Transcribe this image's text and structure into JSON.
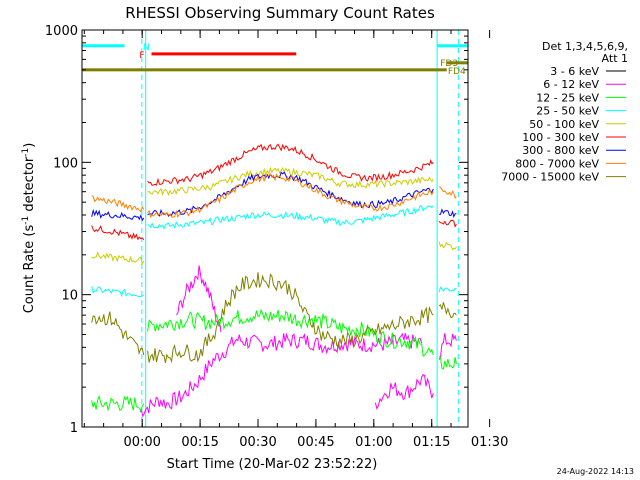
{
  "chart_data": {
    "type": "line",
    "title": "RHESSI Observing Summary Count Rates",
    "xlabel": "Start Time (20-Mar-02 23:52:22)",
    "ylabel_main": "Count Rate (s",
    "ylabel_sup": "-1",
    "ylabel_mid": " detector",
    "ylabel_sup2": "-1",
    "ylabel_end": ")",
    "y_scale": "log",
    "ylim": [
      1,
      1000
    ],
    "xlim_minutes": [
      -8,
      92
    ],
    "x_ticks": [
      {
        "minute": 7.6,
        "label": "00:00"
      },
      {
        "minute": 22.6,
        "label": "00:15"
      },
      {
        "minute": 37.6,
        "label": "00:30"
      },
      {
        "minute": 52.6,
        "label": "00:45"
      },
      {
        "minute": 67.6,
        "label": "01:00"
      },
      {
        "minute": 82.6,
        "label": "01:15"
      },
      {
        "minute": 97.6,
        "label": "01:30"
      }
    ],
    "y_ticks": [
      {
        "value": 1,
        "label": "1"
      },
      {
        "value": 10,
        "label": "10"
      },
      {
        "value": 100,
        "label": "100"
      },
      {
        "value": 1000,
        "label": "1000"
      }
    ],
    "legend_title": [
      "Det 1,3,4,5,6,9,",
      "Att 1"
    ],
    "legend_position": "right",
    "series": [
      {
        "name": "3 - 6 keV",
        "color": "#000000",
        "segments": []
      },
      {
        "name": "6 - 12 keV",
        "color": "#ff00ff",
        "segments": [
          [
            [
              7,
              1.3
            ],
            [
              12,
              1.6
            ],
            [
              14,
              1.5
            ],
            [
              18,
              1.7
            ],
            [
              22,
              2.2
            ],
            [
              26,
              3.2
            ],
            [
              30,
              4
            ],
            [
              32,
              4.6
            ],
            [
              35,
              4.4
            ],
            [
              40,
              4.2
            ],
            [
              45,
              4.5
            ],
            [
              50,
              4.5
            ],
            [
              55,
              4.1
            ],
            [
              60,
              4.3
            ],
            [
              65,
              4.2
            ],
            [
              70,
              4.2
            ],
            [
              75,
              4.5
            ],
            [
              80,
              4.3
            ]
          ],
          [
            [
              16.5,
              7
            ],
            [
              18,
              9
            ],
            [
              19.5,
              11
            ],
            [
              21,
              13
            ],
            [
              22,
              15
            ],
            [
              23,
              14
            ],
            [
              24,
              12
            ],
            [
              25,
              10
            ],
            [
              26,
              8
            ],
            [
              27,
              6.5
            ],
            [
              28,
              5.2
            ]
          ],
          [
            [
              68,
              1.5
            ],
            [
              72,
              2
            ],
            [
              76,
              1.8
            ],
            [
              80,
              2.3
            ],
            [
              83,
              1.8
            ]
          ],
          [
            [
              84.5,
              3.5
            ],
            [
              86,
              4.5
            ],
            [
              88,
              4.5
            ],
            [
              89,
              4.5
            ]
          ]
        ]
      },
      {
        "name": "12 - 25 keV",
        "color": "#00ff00",
        "segments": [
          [
            [
              -5.5,
              1.5
            ],
            [
              8,
              1.5
            ]
          ],
          [
            [
              9,
              5.5
            ],
            [
              11,
              6
            ],
            [
              13,
              6
            ],
            [
              16,
              6.2
            ],
            [
              20,
              6.5
            ],
            [
              24,
              6.2
            ],
            [
              28,
              6.3
            ],
            [
              32,
              6.7
            ],
            [
              36,
              7
            ],
            [
              40,
              6.8
            ],
            [
              44,
              7
            ],
            [
              48,
              6.5
            ],
            [
              52,
              6.5
            ],
            [
              56,
              6
            ],
            [
              60,
              5.5
            ],
            [
              64,
              5.5
            ],
            [
              68,
              5
            ],
            [
              72,
              4.5
            ],
            [
              76,
              4.5
            ],
            [
              80,
              4
            ],
            [
              83,
              3.5
            ]
          ],
          [
            [
              84.5,
              3
            ],
            [
              86,
              3
            ],
            [
              88,
              3
            ],
            [
              89,
              3
            ]
          ]
        ]
      },
      {
        "name": "25 - 50 keV",
        "color": "#00ffff",
        "segments": [
          [
            [
              -5.5,
              11
            ],
            [
              0,
              10.5
            ],
            [
              8,
              10
            ]
          ],
          [
            [
              9,
              34
            ],
            [
              14,
              33
            ],
            [
              18,
              34
            ],
            [
              24,
              35
            ],
            [
              28,
              37
            ],
            [
              32,
              38
            ],
            [
              36,
              40
            ],
            [
              40,
              40
            ],
            [
              44,
              40
            ],
            [
              48,
              39
            ],
            [
              52,
              38
            ],
            [
              56,
              36
            ],
            [
              60,
              35
            ],
            [
              64,
              36
            ],
            [
              68,
              38
            ],
            [
              72,
              40
            ],
            [
              76,
              42
            ],
            [
              80,
              45
            ],
            [
              83,
              47
            ]
          ],
          [
            [
              84.5,
              11
            ],
            [
              86,
              11
            ],
            [
              88,
              11
            ],
            [
              89,
              11
            ]
          ]
        ]
      },
      {
        "name": "50 - 100 keV",
        "color": "#cccc00",
        "segments": [
          [
            [
              -5.5,
              20
            ],
            [
              0,
              19
            ],
            [
              8,
              18
            ]
          ],
          [
            [
              9,
              60
            ],
            [
              14,
              60
            ],
            [
              20,
              62
            ],
            [
              26,
              66
            ],
            [
              30,
              73
            ],
            [
              34,
              80
            ],
            [
              38,
              84
            ],
            [
              42,
              86
            ],
            [
              46,
              85
            ],
            [
              50,
              82
            ],
            [
              54,
              78
            ],
            [
              58,
              70
            ],
            [
              62,
              68
            ],
            [
              66,
              68
            ],
            [
              70,
              69
            ],
            [
              74,
              70
            ],
            [
              78,
              72
            ],
            [
              82,
              74
            ],
            [
              83,
              75
            ]
          ],
          [
            [
              84.5,
              24
            ],
            [
              86,
              24
            ],
            [
              88,
              23
            ],
            [
              89,
              23
            ]
          ]
        ]
      },
      {
        "name": "100 - 300 keV",
        "color": "#ff0000",
        "segments": [
          [
            [
              -5.5,
              32
            ],
            [
              0,
              30
            ],
            [
              8,
              26
            ]
          ],
          [
            [
              9,
              70
            ],
            [
              14,
              72
            ],
            [
              20,
              75
            ],
            [
              26,
              86
            ],
            [
              30,
              100
            ],
            [
              34,
              115
            ],
            [
              38,
              128
            ],
            [
              42,
              132
            ],
            [
              46,
              128
            ],
            [
              50,
              115
            ],
            [
              54,
              100
            ],
            [
              58,
              86
            ],
            [
              62,
              78
            ],
            [
              66,
              76
            ],
            [
              70,
              78
            ],
            [
              74,
              82
            ],
            [
              78,
              88
            ],
            [
              82,
              97
            ],
            [
              83,
              100
            ]
          ],
          [
            [
              84.5,
              35
            ],
            [
              86,
              36
            ],
            [
              88,
              35
            ],
            [
              89,
              34
            ]
          ]
        ]
      },
      {
        "name": "300 - 800 keV",
        "color": "#0000ff",
        "segments": [
          [
            [
              -5.5,
              41
            ],
            [
              0,
              40
            ],
            [
              8,
              38
            ]
          ],
          [
            [
              9,
              41
            ],
            [
              14,
              41
            ],
            [
              20,
              43
            ],
            [
              24,
              48
            ],
            [
              28,
              55
            ],
            [
              32,
              66
            ],
            [
              36,
              76
            ],
            [
              40,
              80
            ],
            [
              44,
              80
            ],
            [
              48,
              76
            ],
            [
              52,
              66
            ],
            [
              56,
              58
            ],
            [
              60,
              52
            ],
            [
              64,
              48
            ],
            [
              68,
              48
            ],
            [
              72,
              50
            ],
            [
              76,
              55
            ],
            [
              80,
              60
            ],
            [
              83,
              63
            ]
          ],
          [
            [
              84.5,
              42
            ],
            [
              86,
              42
            ],
            [
              88,
              41
            ],
            [
              89,
              41
            ]
          ]
        ]
      },
      {
        "name": "800 - 7000 keV",
        "color": "#ff8000",
        "segments": [
          [
            [
              -5.5,
              54
            ],
            [
              0,
              50
            ],
            [
              8,
              44
            ]
          ],
          [
            [
              9,
              41
            ],
            [
              14,
              40
            ],
            [
              20,
              42
            ],
            [
              24,
              46
            ],
            [
              28,
              53
            ],
            [
              32,
              63
            ],
            [
              36,
              73
            ],
            [
              40,
              77
            ],
            [
              44,
              77
            ],
            [
              48,
              72
            ],
            [
              52,
              63
            ],
            [
              56,
              55
            ],
            [
              60,
              50
            ],
            [
              64,
              46
            ],
            [
              68,
              45
            ],
            [
              72,
              47
            ],
            [
              76,
              52
            ],
            [
              80,
              57
            ],
            [
              83,
              60
            ]
          ],
          [
            [
              84.5,
              62
            ],
            [
              86,
              62
            ],
            [
              88,
              58
            ],
            [
              89,
              55
            ]
          ]
        ]
      },
      {
        "name": "7000 - 15000 keV",
        "color": "#808000",
        "segments": [
          [
            [
              -5.5,
              7
            ],
            [
              0,
              6.5
            ],
            [
              3,
              5
            ],
            [
              6,
              4
            ],
            [
              8,
              3.5
            ]
          ],
          [
            [
              9,
              3.5
            ],
            [
              14,
              3.5
            ],
            [
              18,
              3.8
            ],
            [
              22,
              3.5
            ],
            [
              26,
              5
            ],
            [
              28,
              7
            ],
            [
              30,
              9
            ],
            [
              32,
              11
            ],
            [
              34,
              12
            ],
            [
              36,
              12.5
            ],
            [
              38,
              13
            ],
            [
              40,
              13
            ],
            [
              42,
              12.5
            ],
            [
              44,
              12
            ],
            [
              46,
              11
            ],
            [
              48,
              9
            ],
            [
              50,
              7
            ],
            [
              52,
              6
            ],
            [
              54,
              5
            ],
            [
              58,
              4.5
            ],
            [
              62,
              4.5
            ],
            [
              66,
              5
            ],
            [
              70,
              5.5
            ],
            [
              74,
              6
            ],
            [
              78,
              6.5
            ],
            [
              82,
              7
            ],
            [
              83,
              7
            ]
          ],
          [
            [
              84.5,
              7.5
            ],
            [
              86,
              8
            ],
            [
              88,
              7.5
            ],
            [
              89,
              7
            ]
          ]
        ]
      }
    ],
    "flags": [
      {
        "label": "N",
        "color": "#00ffff",
        "y_value": 760,
        "bars": [
          [
            -8,
            3
          ],
          [
            84,
            92
          ]
        ]
      },
      {
        "label": "F",
        "color": "#ff0000",
        "y_value": 660,
        "bars": [
          [
            10,
            47.5
          ]
        ]
      },
      {
        "label": "FD3",
        "color": "#808000",
        "y_value": 565,
        "bars": [
          [
            86.5,
            92
          ]
        ]
      },
      {
        "label": "FD4",
        "color": "#808000",
        "y_value": 500,
        "bars": [
          [
            -8,
            86.5
          ]
        ]
      }
    ],
    "attenuator_lines": {
      "color": "#00ffff",
      "solid_minutes": [
        8.5,
        84
      ],
      "dashed_minutes": [
        7.5,
        89.5
      ]
    },
    "timestamp": "24-Aug-2022 14:13"
  }
}
